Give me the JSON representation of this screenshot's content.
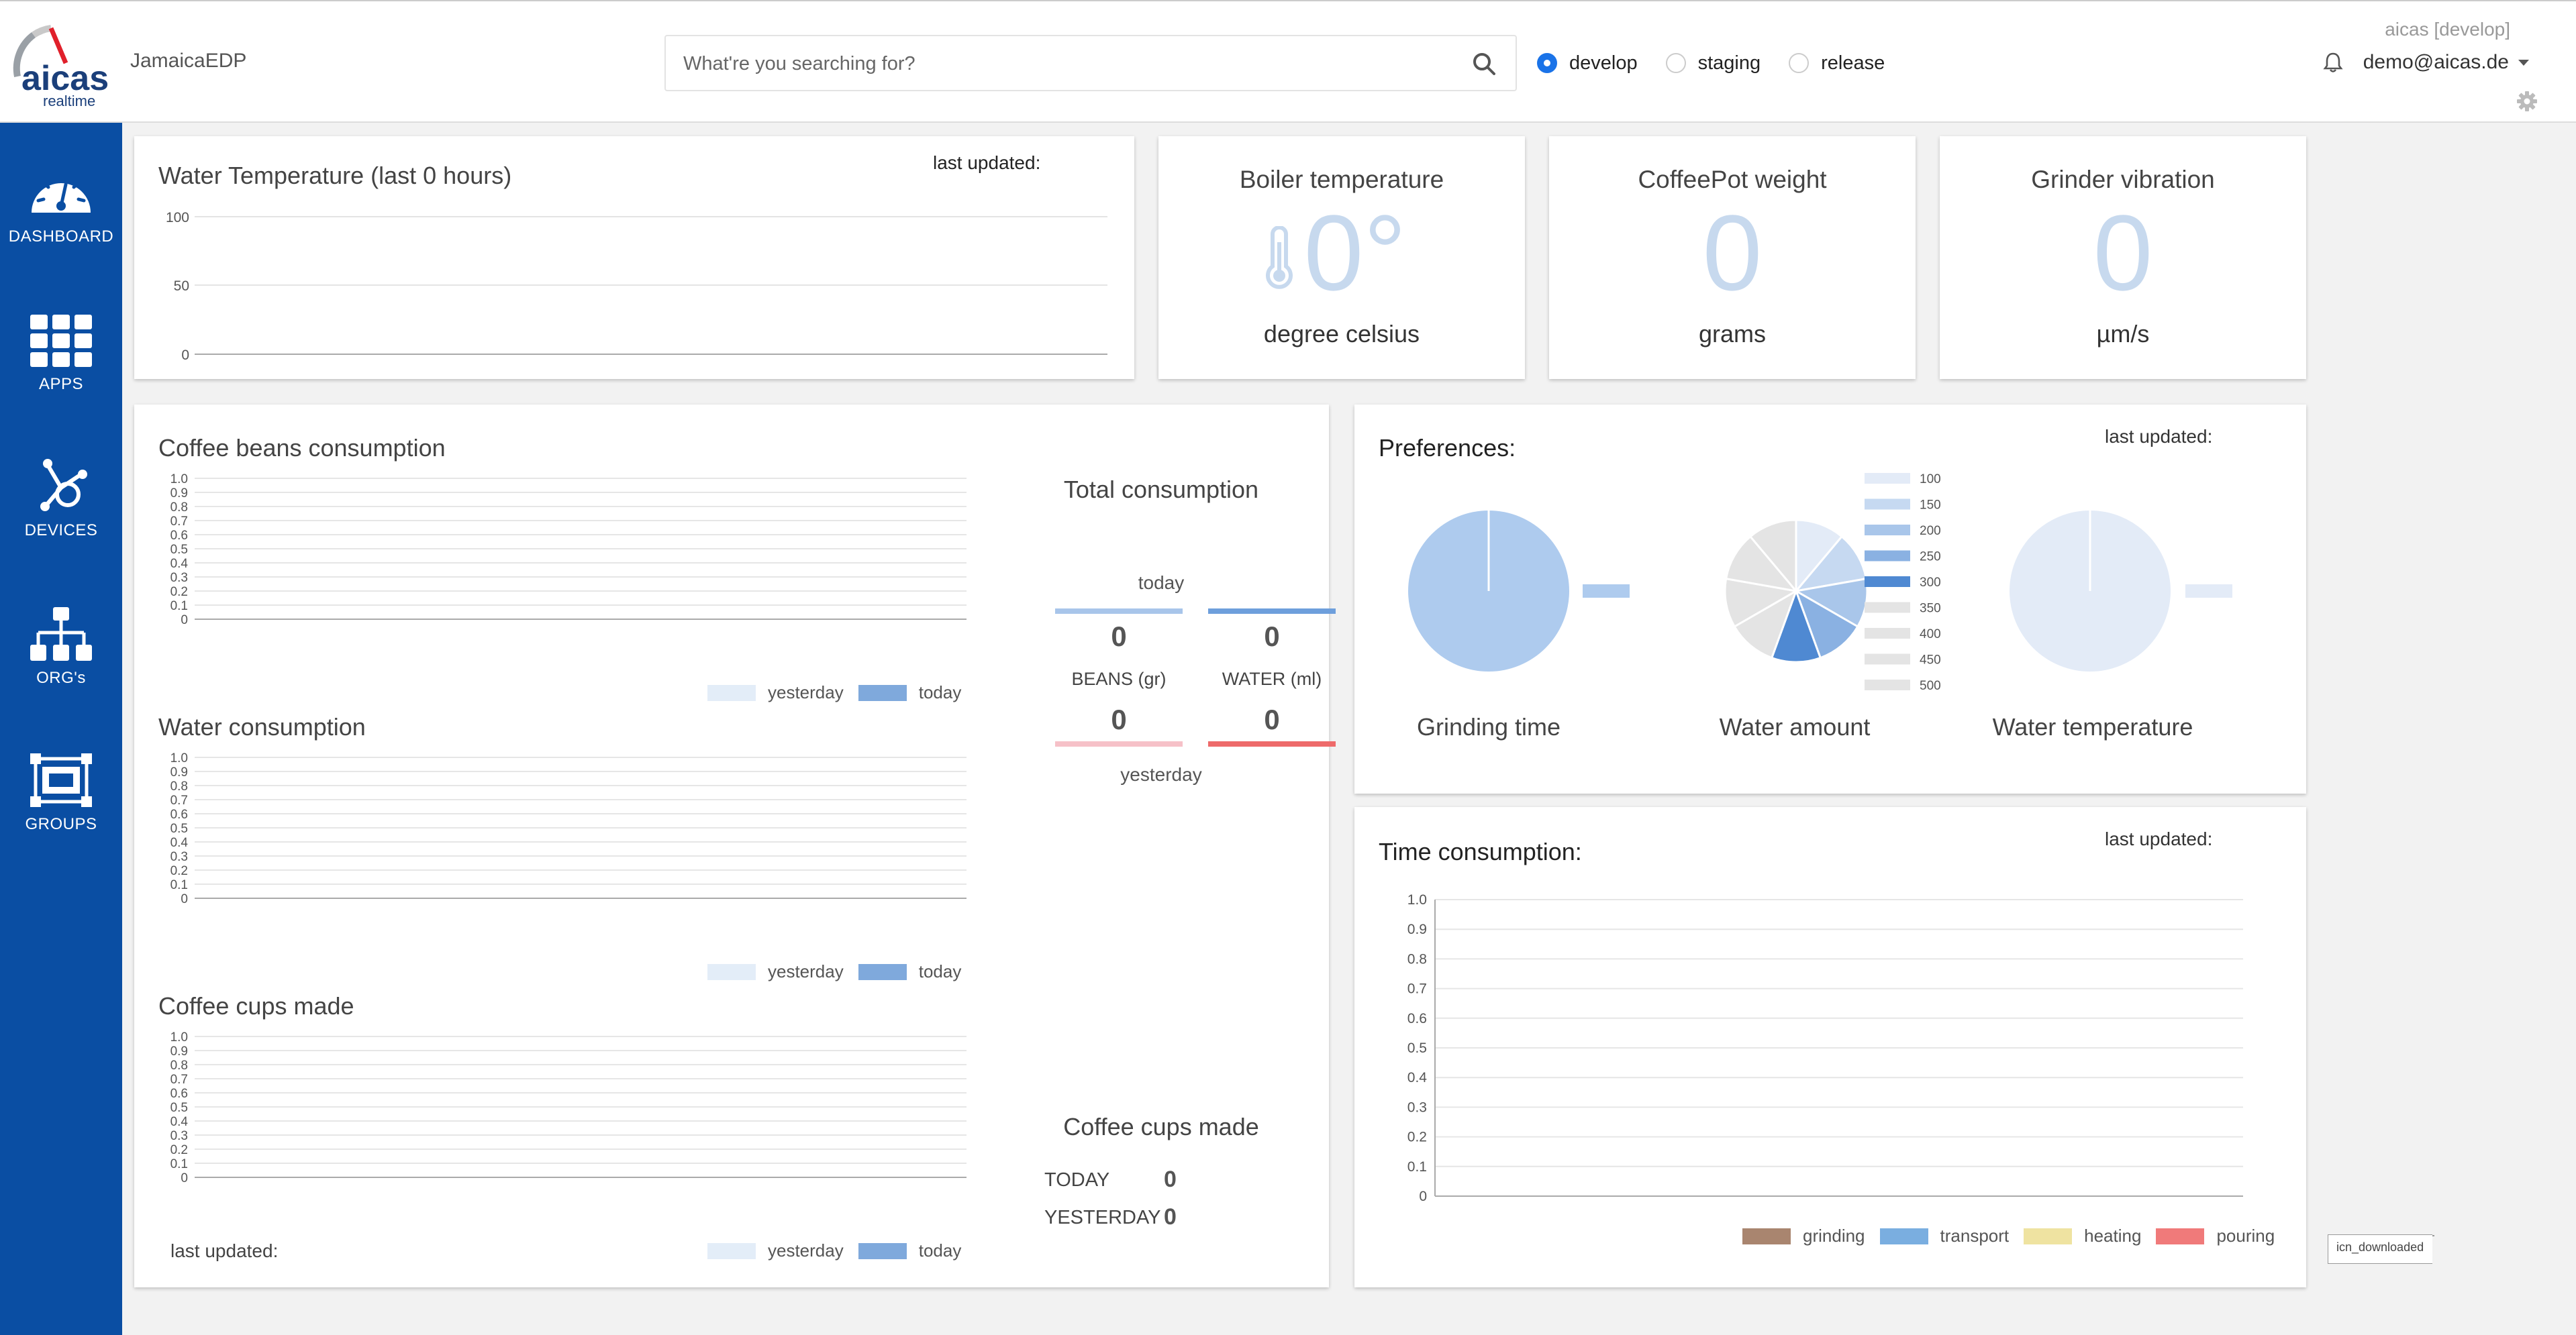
{
  "header": {
    "brand": "JamaicaEDP",
    "logo": {
      "word": "aicas",
      "tagline": "realtime"
    },
    "search_placeholder": "What're you searching for?",
    "environments": [
      {
        "label": "develop",
        "selected": true
      },
      {
        "label": "staging",
        "selected": false
      },
      {
        "label": "release",
        "selected": false
      }
    ],
    "env_label": "aicas [develop]",
    "user": "demo@aicas.de",
    "icons": {
      "search": "search-icon",
      "bell": "bell-icon",
      "settings": "gear-icon"
    }
  },
  "sidebar": {
    "items": [
      {
        "label": "DASHBOARD",
        "icon": "speedometer-icon",
        "active": true
      },
      {
        "label": "APPS",
        "icon": "grid-icon"
      },
      {
        "label": "DEVICES",
        "icon": "hub-icon"
      },
      {
        "label": "ORG's",
        "icon": "org-chart-icon"
      },
      {
        "label": "GROUPS",
        "icon": "group-icon"
      }
    ]
  },
  "water_temperature": {
    "title": "Water Temperature (last 0 hours)",
    "last_updated": "last updated:",
    "yticks": [
      "100",
      "50",
      "0"
    ]
  },
  "tiles": [
    {
      "title": "Boiler temperature",
      "value": "0°",
      "unit": "degree celsius",
      "icon": "thermometer-icon"
    },
    {
      "title": "CoffeePot weight",
      "value": "0",
      "unit": "grams"
    },
    {
      "title": "Grinder vibration",
      "value": "0",
      "unit": "µm/s"
    }
  ],
  "consumption": {
    "beans_title": "Coffee beans consumption",
    "water_title": "Water consumption",
    "cups_title": "Coffee cups made",
    "yticks": [
      "1.0",
      "0.9",
      "0.8",
      "0.7",
      "0.6",
      "0.5",
      "0.4",
      "0.3",
      "0.2",
      "0.1",
      "0"
    ],
    "legend": [
      "yesterday",
      "today"
    ],
    "last_updated": "last updated:",
    "total": {
      "title": "Total consumption",
      "today_label": "today",
      "yesterday_label": "yesterday",
      "beans_label": "BEANS (gr)",
      "water_label": "WATER (ml)",
      "beans_today": "0",
      "water_today": "0",
      "beans_yesterday": "0",
      "water_yesterday": "0"
    },
    "cups": {
      "title": "Coffee cups made",
      "today_label": "TODAY",
      "today_value": "0",
      "yesterday_label": "YESTERDAY",
      "yesterday_value": "0"
    }
  },
  "preferences": {
    "title": "Preferences:",
    "last_updated": "last updated:",
    "labels": [
      "Grinding time",
      "Water amount",
      "Water temperature"
    ],
    "water_amount_legend": [
      "100",
      "150",
      "200",
      "250",
      "300",
      "350",
      "400",
      "450",
      "500"
    ]
  },
  "time_consumption": {
    "title": "Time consumption:",
    "last_updated": "last updated:",
    "legend": [
      {
        "label": "grinding",
        "color": "#a9856f"
      },
      {
        "label": "transport",
        "color": "#7aaee0"
      },
      {
        "label": "heating",
        "color": "#efe3a1"
      },
      {
        "label": "pouring",
        "color": "#f07a7a"
      }
    ]
  },
  "footer_badge": "icn_downloaded",
  "colors": {
    "sidebar": "#0a4ea3",
    "accent": "#1a73e8",
    "yesterday": "#e3edf8",
    "today": "#7fa9dc",
    "beans_today_bar": "#a8c5ea",
    "water_today_bar": "#6e9fdc",
    "beans_yesterday_bar": "#f6c1c8",
    "water_yesterday_bar": "#ee6a6a"
  },
  "chart_data": [
    {
      "type": "line",
      "title": "Water Temperature (last 0 hours)",
      "ylim": [
        0,
        100
      ],
      "yticks": [
        0,
        50,
        100
      ],
      "series": []
    },
    {
      "type": "bar",
      "title": "Coffee beans consumption",
      "ylim": [
        0,
        1
      ],
      "series": [
        {
          "name": "yesterday",
          "values": []
        },
        {
          "name": "today",
          "values": []
        }
      ]
    },
    {
      "type": "bar",
      "title": "Water consumption",
      "ylim": [
        0,
        1
      ],
      "series": [
        {
          "name": "yesterday",
          "values": []
        },
        {
          "name": "today",
          "values": []
        }
      ]
    },
    {
      "type": "bar",
      "title": "Coffee cups made",
      "ylim": [
        0,
        1
      ],
      "series": [
        {
          "name": "yesterday",
          "values": []
        },
        {
          "name": "today",
          "values": []
        }
      ]
    },
    {
      "type": "pie",
      "title": "Grinding time",
      "values": [
        1
      ]
    },
    {
      "type": "pie",
      "title": "Water amount",
      "categories": [
        "100",
        "150",
        "200",
        "250",
        "300",
        "350",
        "400",
        "450",
        "500"
      ],
      "values": [
        1,
        1,
        1,
        1,
        1,
        1,
        1,
        1,
        1
      ]
    },
    {
      "type": "pie",
      "title": "Water temperature",
      "values": [
        1
      ]
    },
    {
      "type": "bar",
      "title": "Time consumption:",
      "ylim": [
        0,
        1
      ],
      "yticks": [
        0,
        0.1,
        0.2,
        0.3,
        0.4,
        0.5,
        0.6,
        0.7,
        0.8,
        0.9,
        1.0
      ],
      "series": [
        {
          "name": "grinding",
          "values": []
        },
        {
          "name": "transport",
          "values": []
        },
        {
          "name": "heating",
          "values": []
        },
        {
          "name": "pouring",
          "values": []
        }
      ]
    }
  ]
}
